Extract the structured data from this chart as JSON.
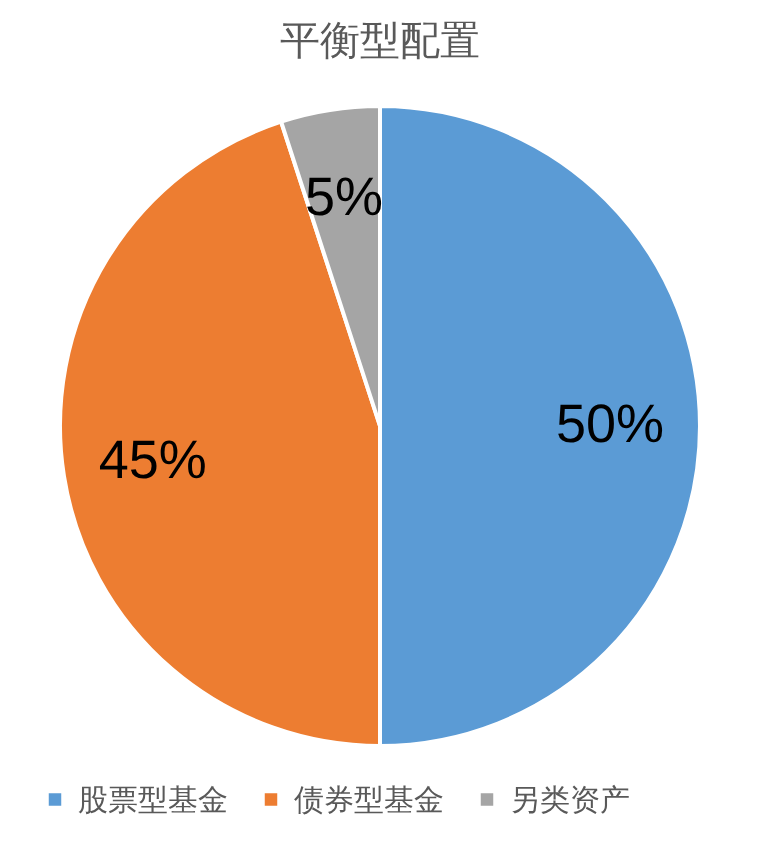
{
  "chart_data": {
    "type": "pie",
    "title": "平衡型配置",
    "categories": [
      "股票型基金",
      "债券型基金",
      "另类资产"
    ],
    "values": [
      50,
      45,
      5
    ],
    "colors": [
      "#5b9bd5",
      "#ed7d31",
      "#a5a5a5"
    ],
    "value_labels": [
      "50%",
      "45%",
      "5%"
    ],
    "legend": "bottom"
  }
}
